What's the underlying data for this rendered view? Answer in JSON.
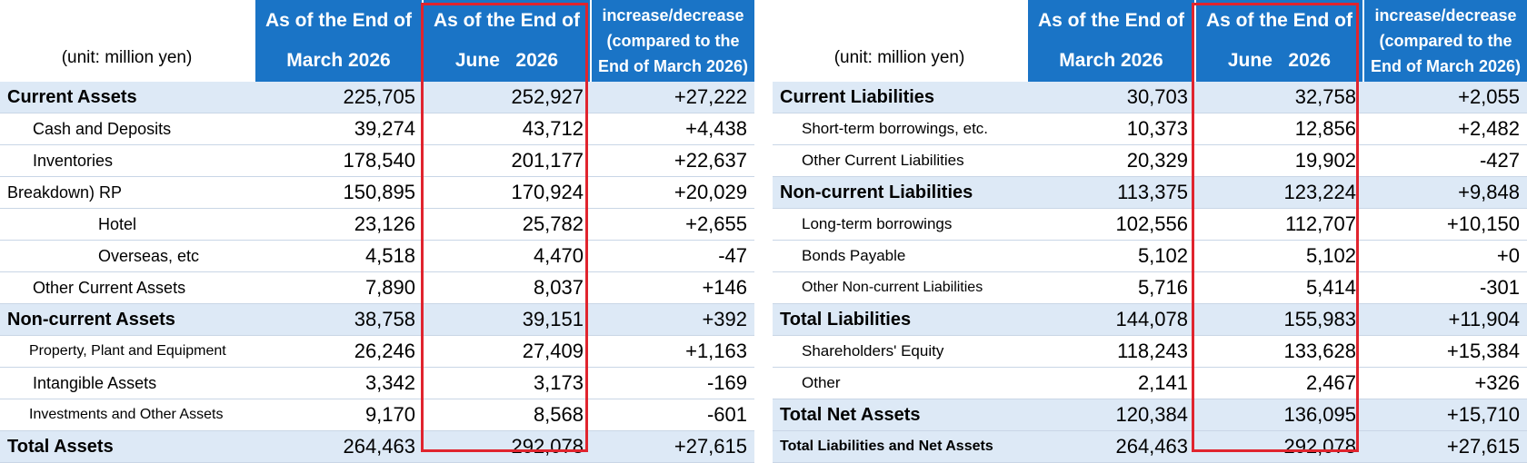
{
  "left_table": {
    "unit": "(unit: million yen)",
    "col_march": [
      "As of the End of",
      "March 2026"
    ],
    "col_june": [
      "As of the End of",
      "June   2026"
    ],
    "col_change": [
      "increase/decrease",
      "(compared to the",
      "End of March 2026)"
    ],
    "rows": [
      {
        "label": "Current Assets",
        "march": "225,705",
        "june": "252,927",
        "change": "+27,222"
      },
      {
        "label": "Cash and Deposits",
        "march": "39,274",
        "june": "43,712",
        "change": "+4,438"
      },
      {
        "label": "Inventories",
        "march": "178,540",
        "june": "201,177",
        "change": "+22,637"
      },
      {
        "label": "Breakdown) RP",
        "march": "150,895",
        "june": "170,924",
        "change": "+20,029"
      },
      {
        "label": "Hotel",
        "march": "23,126",
        "june": "25,782",
        "change": "+2,655"
      },
      {
        "label": "Overseas, etc",
        "march": "4,518",
        "june": "4,470",
        "change": "-47"
      },
      {
        "label": "Other Current Assets",
        "march": "7,890",
        "june": "8,037",
        "change": "+146"
      },
      {
        "label": "Non-current Assets",
        "march": "38,758",
        "june": "39,151",
        "change": "+392"
      },
      {
        "label": "Property, Plant and Equipment",
        "march": "26,246",
        "june": "27,409",
        "change": "+1,163"
      },
      {
        "label": "Intangible Assets",
        "march": "3,342",
        "june": "3,173",
        "change": "-169"
      },
      {
        "label": "Investments and Other Assets",
        "march": "9,170",
        "june": "8,568",
        "change": "-601"
      },
      {
        "label": "Total Assets",
        "march": "264,463",
        "june": "292,078",
        "change": "+27,615"
      }
    ]
  },
  "right_table": {
    "unit": "(unit: million yen)",
    "col_march": [
      "As of the End of",
      "March 2026"
    ],
    "col_june": [
      "As of the End of",
      "June   2026"
    ],
    "col_change": [
      "increase/decrease",
      "(compared to the",
      "End of March 2026)"
    ],
    "rows": [
      {
        "label": "Current Liabilities",
        "march": "30,703",
        "june": "32,758",
        "change": "+2,055"
      },
      {
        "label": "Short-term borrowings, etc.",
        "march": "10,373",
        "june": "12,856",
        "change": "+2,482"
      },
      {
        "label": "Other Current Liabilities",
        "march": "20,329",
        "june": "19,902",
        "change": "-427"
      },
      {
        "label": "Non-current Liabilities",
        "march": "113,375",
        "june": "123,224",
        "change": "+9,848"
      },
      {
        "label": "Long-term borrowings",
        "march": "102,556",
        "june": "112,707",
        "change": "+10,150"
      },
      {
        "label": "Bonds Payable",
        "march": "5,102",
        "june": "5,102",
        "change": "+0"
      },
      {
        "label": "Other Non-current Liabilities",
        "march": "5,716",
        "june": "5,414",
        "change": "-301"
      },
      {
        "label": "Total Liabilities",
        "march": "144,078",
        "june": "155,983",
        "change": "+11,904"
      },
      {
        "label": "Shareholders' Equity",
        "march": "118,243",
        "june": "133,628",
        "change": "+15,384"
      },
      {
        "label": "Other",
        "march": "2,141",
        "june": "2,467",
        "change": "+326"
      },
      {
        "label": "Total Net Assets",
        "march": "120,384",
        "june": "136,095",
        "change": "+15,710"
      },
      {
        "label": "Total Liabilities and Net Assets",
        "march": "264,463",
        "june": "292,078",
        "change": "+27,615"
      }
    ]
  },
  "colors": {
    "header_blue": "#1a74c6",
    "highlight_row": "#dde9f6",
    "red_box": "#e0242e"
  }
}
